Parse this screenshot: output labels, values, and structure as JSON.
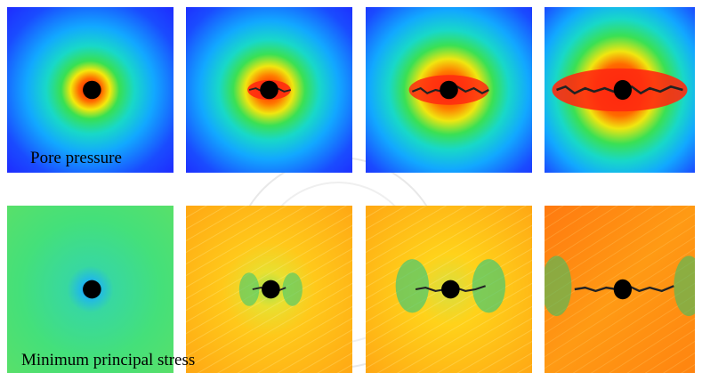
{
  "labels": {
    "row1": "Pore pressure",
    "row2": "Minimum principal stress"
  },
  "colors": {
    "pore_outer": "#1e2dff",
    "pore_mid": "#18d0ff",
    "pore_green": "#30e060",
    "pore_yellow": "#f0e010",
    "pore_red": "#ff2a10",
    "stress_green": "#3ee08a",
    "stress_yellow": "#ffd21a",
    "stress_orange": "#ff8a10",
    "well": "#000000"
  }
}
